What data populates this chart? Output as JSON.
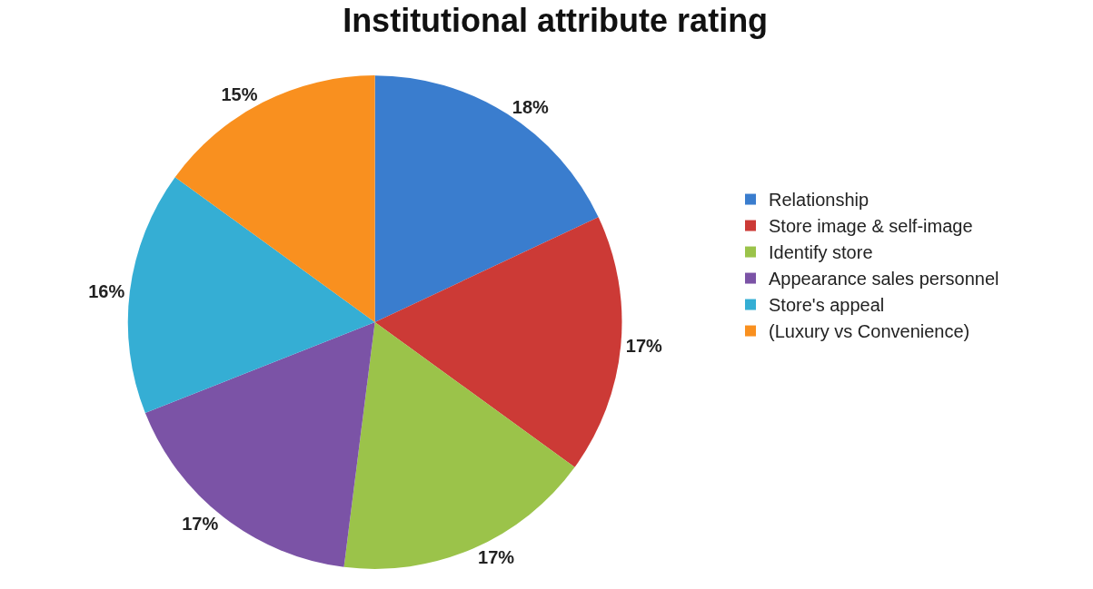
{
  "chart_data": {
    "type": "pie",
    "title": "Institutional attribute rating",
    "categories": [
      "Relationship",
      "Store image & self-image",
      "Identify store",
      "Appearance sales personnel",
      "Store's appeal",
      "(Luxury vs Convenience)"
    ],
    "values": [
      18,
      17,
      17,
      17,
      16,
      15
    ],
    "colors": [
      "#3a7dce",
      "#cc3a36",
      "#9bc34a",
      "#7b53a6",
      "#35aed4",
      "#f9901f"
    ],
    "value_labels": [
      "18%",
      "17%",
      "17%",
      "17%",
      "16%",
      "15%"
    ],
    "legend": "right"
  }
}
